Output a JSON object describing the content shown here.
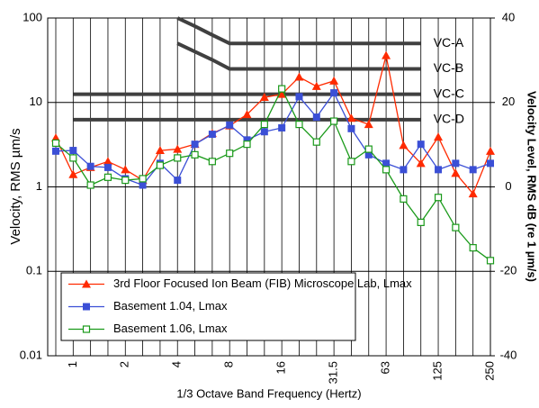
{
  "chart_data": {
    "type": "line",
    "x_label": "1/3 Octave Band Frequency (Hertz)",
    "y_label": "Velocity, RMS µm/s",
    "y2_label": "Velocity Level, RMS dB (re 1 µm/s)",
    "categories": [
      null,
      1,
      null,
      null,
      2,
      null,
      null,
      4,
      null,
      null,
      8,
      null,
      null,
      16,
      null,
      null,
      31.5,
      null,
      null,
      63,
      null,
      null,
      125,
      null,
      null,
      250
    ],
    "ylim": [
      0.01,
      100
    ],
    "yticks": [
      0.01,
      0.1,
      1,
      10,
      100
    ],
    "log_y": true,
    "y2lim": [
      -40,
      40
    ],
    "y2ticks": [
      -40,
      -20,
      0,
      20,
      40
    ],
    "grid": true,
    "legend": "lower left",
    "series": [
      {
        "name": "3rd Floor Focused Ion Beam (FIB) Microscope Lab, Lmax",
        "color": "#ff2a00",
        "marker": "triangle",
        "values": [
          3.8,
          1.4,
          1.7,
          2.0,
          1.6,
          1.2,
          2.7,
          2.8,
          3.2,
          4.3,
          5.3,
          7.2,
          11.5,
          12.5,
          20,
          15.5,
          18,
          6.5,
          5.5,
          36,
          3.1,
          1.9,
          3.9,
          1.45,
          0.83,
          2.65
        ]
      },
      {
        "name": "Basement 1.04, Lmax",
        "color": "#3b4fd6",
        "marker": "square",
        "values": [
          2.65,
          2.7,
          1.75,
          1.7,
          1.25,
          1.05,
          1.9,
          1.2,
          3.2,
          4.2,
          5.4,
          3.6,
          4.5,
          5,
          11.7,
          6.7,
          13,
          4.9,
          2.4,
          1.9,
          1.6,
          3.2,
          1.6,
          1.9,
          1.6,
          1.9
        ]
      },
      {
        "name": "Basement 1.06, Lmax",
        "color": "#1a9a1a",
        "marker": "open-square",
        "values": [
          3.3,
          2.2,
          1.05,
          1.3,
          1.2,
          1.25,
          1.8,
          2.2,
          2.4,
          2.0,
          2.5,
          3.2,
          5.5,
          14.5,
          5.5,
          3.4,
          6,
          2.0,
          2.8,
          1.6,
          0.72,
          0.38,
          0.75,
          0.33,
          0.19,
          0.134
        ]
      }
    ],
    "reference_lines": [
      {
        "name": "VC-A",
        "color": "#404040",
        "values": [
          null,
          null,
          null,
          null,
          null,
          null,
          null,
          100,
          80,
          63,
          50,
          50,
          50,
          50,
          50,
          50,
          50,
          50,
          50,
          50,
          50,
          50,
          null,
          null,
          null,
          null
        ]
      },
      {
        "name": "VC-B",
        "color": "#404040",
        "values": [
          null,
          null,
          null,
          null,
          null,
          null,
          null,
          50,
          40,
          32,
          25,
          25,
          25,
          25,
          25,
          25,
          25,
          25,
          25,
          25,
          25,
          25,
          null,
          null,
          null,
          null
        ]
      },
      {
        "name": "VC-C",
        "color": "#404040",
        "values": [
          null,
          12.5,
          12.5,
          12.5,
          12.5,
          12.5,
          12.5,
          12.5,
          12.5,
          12.5,
          12.5,
          12.5,
          12.5,
          12.5,
          12.5,
          12.5,
          12.5,
          12.5,
          12.5,
          12.5,
          12.5,
          12.5,
          null,
          null,
          null,
          null
        ]
      },
      {
        "name": "VC-D",
        "color": "#404040",
        "values": [
          null,
          6.25,
          6.25,
          6.25,
          6.25,
          6.25,
          6.25,
          6.25,
          6.25,
          6.25,
          6.25,
          6.25,
          6.25,
          6.25,
          6.25,
          6.25,
          6.25,
          6.25,
          6.25,
          6.25,
          6.25,
          6.25,
          null,
          null,
          null,
          null
        ]
      }
    ]
  }
}
